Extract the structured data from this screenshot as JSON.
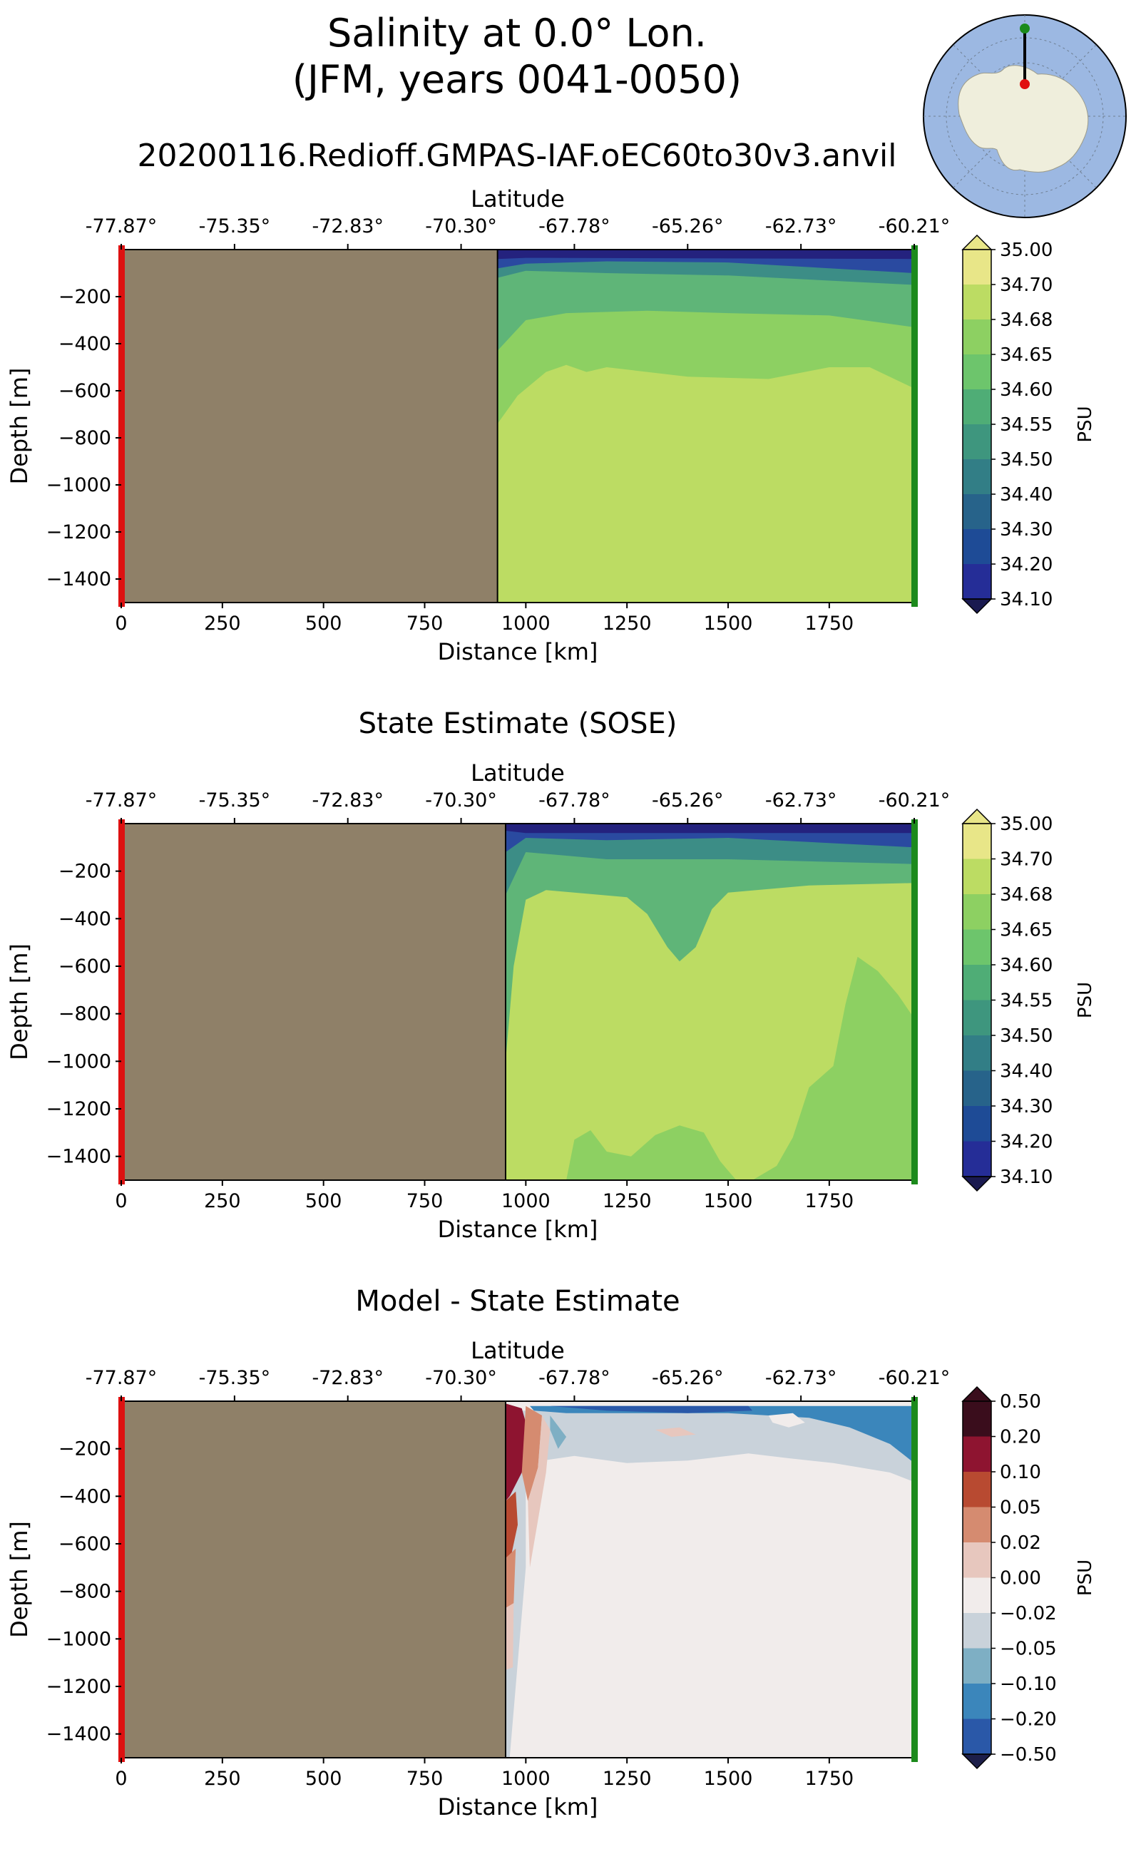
{
  "figure": {
    "title_line1": "Salinity at 0.0° Lon.",
    "title_line2": "(JFM, years 0041-0050)",
    "subtitle": "20200116.Redioff.GMPAS-IAF.oEC60to30v3.anvil",
    "inset_map": {
      "description_icon": "antarctica-inset-map",
      "land_color": "#efeedc",
      "ocean_color": "#9cb8e2"
    }
  },
  "chart_data": [
    {
      "type": "heatmap",
      "title": "",
      "xlabel": "Distance [km]",
      "ylabel": "Depth [m]",
      "top_xlabel": "Latitude",
      "xlim": [
        0,
        1960
      ],
      "ylim": [
        -1500,
        0
      ],
      "xticks": [
        0,
        250,
        500,
        750,
        1000,
        1250,
        1500,
        1750
      ],
      "yticks": [
        -200,
        -400,
        -600,
        -800,
        -1000,
        -1200,
        -1400
      ],
      "top_ticks": [
        "-77.87°",
        "-75.35°",
        "-72.83°",
        "-70.30°",
        "-67.78°",
        "-65.26°",
        "-62.73°",
        "-60.21°"
      ],
      "top_tick_positions_km": [
        0,
        280,
        560,
        840,
        1120,
        1400,
        1680,
        1960
      ],
      "land_extent_km": [
        0,
        930
      ],
      "colorbar_label": "PSU",
      "colorbar_ticks": [
        "35.00",
        "34.70",
        "34.68",
        "34.65",
        "34.60",
        "34.55",
        "34.50",
        "34.40",
        "34.30",
        "34.20",
        "34.10"
      ],
      "colorbar_colors": [
        "#e8e688",
        "#bcdc63",
        "#8dd062",
        "#6dc56c",
        "#4fad76",
        "#3e967e",
        "#327e86",
        "#27638a",
        "#1e4b96",
        "#252d97",
        "#1a1a50"
      ],
      "layers": [
        {
          "level": "34.10",
          "color": "#24227e",
          "top": [
            [
              930,
              -30
            ],
            [
              1960,
              -30
            ]
          ]
        },
        {
          "level": "34.30",
          "color": "#2a4aa0",
          "top": [
            [
              930,
              -40
            ],
            [
              1000,
              -35
            ],
            [
              1960,
              -40
            ]
          ]
        },
        {
          "level": "34.50",
          "color": "#3c8d86",
          "top": [
            [
              930,
              -80
            ],
            [
              1000,
              -60
            ],
            [
              1200,
              -50
            ],
            [
              1500,
              -55
            ],
            [
              1960,
              -100
            ]
          ]
        },
        {
          "level": "34.60",
          "color": "#5fb578",
          "top": [
            [
              930,
              -120
            ],
            [
              1000,
              -90
            ],
            [
              1200,
              -100
            ],
            [
              1500,
              -110
            ],
            [
              1960,
              -150
            ]
          ]
        },
        {
          "level": "34.65",
          "color": "#8dd062",
          "top": [
            [
              930,
              -430
            ],
            [
              1000,
              -300
            ],
            [
              1100,
              -270
            ],
            [
              1300,
              -260
            ],
            [
              1500,
              -270
            ],
            [
              1750,
              -280
            ],
            [
              1960,
              -330
            ]
          ]
        },
        {
          "level": "34.68",
          "color": "#bcdc63",
          "top": [
            [
              930,
              -740
            ],
            [
              980,
              -620
            ],
            [
              1050,
              -520
            ],
            [
              1100,
              -490
            ],
            [
              1150,
              -520
            ],
            [
              1200,
              -500
            ],
            [
              1400,
              -540
            ],
            [
              1600,
              -550
            ],
            [
              1750,
              -500
            ],
            [
              1850,
              -500
            ],
            [
              1960,
              -590
            ]
          ]
        }
      ]
    },
    {
      "type": "heatmap",
      "title": "State Estimate (SOSE)",
      "xlabel": "Distance [km]",
      "ylabel": "Depth [m]",
      "top_xlabel": "Latitude",
      "xlim": [
        0,
        1960
      ],
      "ylim": [
        -1500,
        0
      ],
      "xticks": [
        0,
        250,
        500,
        750,
        1000,
        1250,
        1500,
        1750
      ],
      "yticks": [
        -200,
        -400,
        -600,
        -800,
        -1000,
        -1200,
        -1400
      ],
      "top_ticks": [
        "-77.87°",
        "-75.35°",
        "-72.83°",
        "-70.30°",
        "-67.78°",
        "-65.26°",
        "-62.73°",
        "-60.21°"
      ],
      "top_tick_positions_km": [
        0,
        280,
        560,
        840,
        1120,
        1400,
        1680,
        1960
      ],
      "land_extent_km": [
        0,
        950
      ],
      "colorbar_label": "PSU",
      "colorbar_ticks": [
        "35.00",
        "34.70",
        "34.68",
        "34.65",
        "34.60",
        "34.55",
        "34.50",
        "34.40",
        "34.30",
        "34.20",
        "34.10"
      ],
      "colorbar_colors": [
        "#e8e688",
        "#bcdc63",
        "#8dd062",
        "#6dc56c",
        "#4fad76",
        "#3e967e",
        "#327e86",
        "#27638a",
        "#1e4b96",
        "#252d97",
        "#1a1a50"
      ],
      "layers": [
        {
          "level": "34.10",
          "color": "#24227e",
          "top": [
            [
              950,
              -20
            ],
            [
              1960,
              -20
            ]
          ]
        },
        {
          "level": "34.30",
          "color": "#2a4aa0",
          "top": [
            [
              950,
              -30
            ],
            [
              1000,
              -40
            ],
            [
              1960,
              -40
            ]
          ]
        },
        {
          "level": "34.50",
          "color": "#3c8d86",
          "top": [
            [
              950,
              -120
            ],
            [
              1000,
              -60
            ],
            [
              1200,
              -70
            ],
            [
              1500,
              -60
            ],
            [
              1960,
              -100
            ]
          ]
        },
        {
          "level": "34.60",
          "color": "#5fb578",
          "top": [
            [
              950,
              -300
            ],
            [
              1000,
              -120
            ],
            [
              1200,
              -150
            ],
            [
              1500,
              -150
            ],
            [
              1960,
              -170
            ]
          ]
        },
        {
          "level": "34.65",
          "color": "#8dd062",
          "top": [
            [
              950,
              -1500
            ],
            [
              1960,
              -1500
            ]
          ]
        },
        {
          "level": "34.68",
          "color": "#bcdc63",
          "top": [
            [
              950,
              -1000
            ],
            [
              970,
              -600
            ],
            [
              1000,
              -320
            ],
            [
              1050,
              -280
            ],
            [
              1250,
              -310
            ],
            [
              1300,
              -380
            ],
            [
              1350,
              -520
            ],
            [
              1380,
              -580
            ],
            [
              1420,
              -520
            ],
            [
              1460,
              -360
            ],
            [
              1500,
              -290
            ],
            [
              1700,
              -260
            ],
            [
              1960,
              -250
            ]
          ]
        }
      ],
      "patches": [
        {
          "color": "#8dd062",
          "points": [
            [
              1100,
              -1500
            ],
            [
              1120,
              -1330
            ],
            [
              1160,
              -1290
            ],
            [
              1200,
              -1380
            ],
            [
              1260,
              -1400
            ],
            [
              1320,
              -1310
            ],
            [
              1380,
              -1270
            ],
            [
              1440,
              -1300
            ],
            [
              1480,
              -1420
            ],
            [
              1520,
              -1500
            ]
          ]
        },
        {
          "color": "#8dd062",
          "points": [
            [
              1560,
              -1500
            ],
            [
              1620,
              -1440
            ],
            [
              1660,
              -1320
            ],
            [
              1700,
              -1110
            ],
            [
              1760,
              -1020
            ],
            [
              1790,
              -760
            ],
            [
              1820,
              -560
            ],
            [
              1870,
              -620
            ],
            [
              1920,
              -720
            ],
            [
              1960,
              -820
            ],
            [
              1960,
              -1500
            ]
          ]
        }
      ]
    },
    {
      "type": "heatmap",
      "title": "Model - State Estimate",
      "xlabel": "Distance [km]",
      "ylabel": "Depth [m]",
      "top_xlabel": "Latitude",
      "xlim": [
        0,
        1960
      ],
      "ylim": [
        -1500,
        0
      ],
      "xticks": [
        0,
        250,
        500,
        750,
        1000,
        1250,
        1500,
        1750
      ],
      "yticks": [
        -200,
        -400,
        -600,
        -800,
        -1000,
        -1200,
        -1400
      ],
      "top_ticks": [
        "-77.87°",
        "-75.35°",
        "-72.83°",
        "-70.30°",
        "-67.78°",
        "-65.26°",
        "-62.73°",
        "-60.21°"
      ],
      "top_tick_positions_km": [
        0,
        280,
        560,
        840,
        1120,
        1400,
        1680,
        1960
      ],
      "land_extent_km": [
        0,
        950
      ],
      "colorbar_label": "PSU",
      "colorbar_ticks": [
        "0.50",
        "0.20",
        "0.10",
        "0.05",
        "0.02",
        "0.00",
        "−0.02",
        "−0.05",
        "−0.10",
        "−0.20",
        "−0.50"
      ],
      "colorbar_colors": [
        "#3a0d1c",
        "#8e1430",
        "#b84a31",
        "#d58b70",
        "#e7c7be",
        "#f1eceb",
        "#c9d2da",
        "#7eafc4",
        "#3b86bb",
        "#2a58a8",
        "#1d1f4a"
      ],
      "base_color": "#f1eceb",
      "layers": [
        {
          "level": "−0.02",
          "color": "#c9d2da",
          "top": [
            [
              950,
              -40
            ],
            [
              1960,
              -40
            ]
          ]
        }
      ],
      "patches": [
        {
          "color": "#f1eceb",
          "points": [
            [
              1000,
              -260
            ],
            [
              1120,
              -230
            ],
            [
              1250,
              -260
            ],
            [
              1400,
              -250
            ],
            [
              1550,
              -220
            ],
            [
              1650,
              -240
            ],
            [
              1760,
              -260
            ],
            [
              1900,
              -300
            ],
            [
              1960,
              -340
            ],
            [
              1960,
              -1500
            ],
            [
              960,
              -1500
            ],
            [
              1000,
              -700
            ]
          ]
        },
        {
          "color": "#8e1430",
          "points": [
            [
              950,
              -10
            ],
            [
              990,
              -30
            ],
            [
              1010,
              -150
            ],
            [
              990,
              -300
            ],
            [
              960,
              -400
            ],
            [
              950,
              -420
            ]
          ]
        },
        {
          "color": "#b84a31",
          "points": [
            [
              950,
              -420
            ],
            [
              975,
              -380
            ],
            [
              980,
              -520
            ],
            [
              965,
              -640
            ],
            [
              950,
              -660
            ]
          ]
        },
        {
          "color": "#d58b70",
          "points": [
            [
              950,
              -660
            ],
            [
              975,
              -620
            ],
            [
              970,
              -850
            ],
            [
              950,
              -870
            ]
          ]
        },
        {
          "color": "#e7c7be",
          "points": [
            [
              950,
              -870
            ],
            [
              970,
              -850
            ],
            [
              968,
              -1120
            ],
            [
              950,
              -1130
            ]
          ]
        },
        {
          "color": "#d58b70",
          "points": [
            [
              1000,
              -20
            ],
            [
              1040,
              -60
            ],
            [
              1030,
              -280
            ],
            [
              1005,
              -420
            ],
            [
              990,
              -300
            ]
          ]
        },
        {
          "color": "#e7c7be",
          "points": [
            [
              1040,
              -60
            ],
            [
              1060,
              -120
            ],
            [
              1050,
              -300
            ],
            [
              1030,
              -500
            ],
            [
              1010,
              -700
            ],
            [
              1005,
              -420
            ],
            [
              1030,
              -280
            ]
          ]
        },
        {
          "color": "#3b86bb",
          "points": [
            [
              1010,
              -20
            ],
            [
              1960,
              -20
            ],
            [
              1960,
              -260
            ],
            [
              1900,
              -180
            ],
            [
              1800,
              -110
            ],
            [
              1700,
              -70
            ],
            [
              1500,
              -50
            ],
            [
              1300,
              -50
            ],
            [
              1100,
              -50
            ],
            [
              1020,
              -40
            ]
          ]
        },
        {
          "color": "#7eafc4",
          "points": [
            [
              1060,
              -60
            ],
            [
              1100,
              -150
            ],
            [
              1080,
              -200
            ],
            [
              1060,
              -120
            ]
          ]
        },
        {
          "color": "#2a58a8",
          "points": [
            [
              1060,
              -20
            ],
            [
              1550,
              -20
            ],
            [
              1560,
              -40
            ],
            [
              1400,
              -50
            ],
            [
              1200,
              -40
            ]
          ]
        },
        {
          "color": "#e7c7be",
          "points": [
            [
              1320,
              -120
            ],
            [
              1380,
              -110
            ],
            [
              1420,
              -140
            ],
            [
              1360,
              -150
            ]
          ]
        },
        {
          "color": "#f1eceb",
          "points": [
            [
              1600,
              -60
            ],
            [
              1660,
              -50
            ],
            [
              1690,
              -90
            ],
            [
              1650,
              -110
            ],
            [
              1610,
              -90
            ]
          ]
        }
      ]
    }
  ]
}
